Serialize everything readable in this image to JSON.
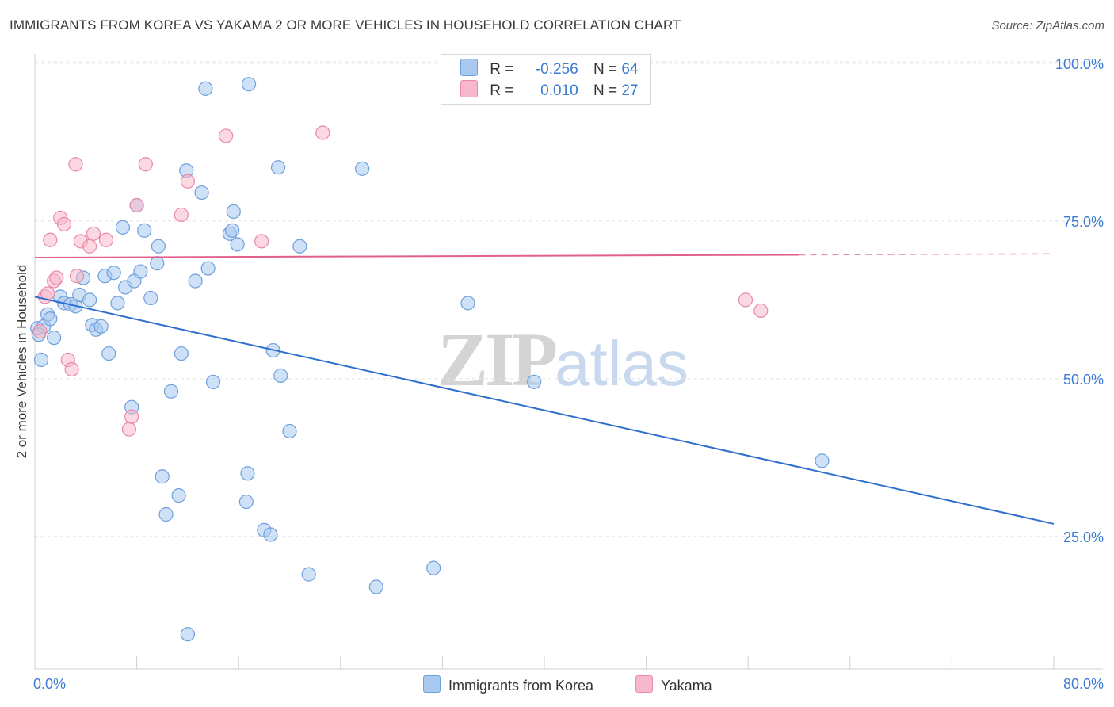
{
  "header": {
    "title": "IMMIGRANTS FROM KOREA VS YAKAMA 2 OR MORE VEHICLES IN HOUSEHOLD CORRELATION CHART",
    "source": "Source: ZipAtlas.com"
  },
  "legend": {
    "series": [
      {
        "r_label": "R =",
        "r_value": "-0.256",
        "n_label": "N =",
        "n_value": "64",
        "color": "#a8c8f0"
      },
      {
        "r_label": "R =",
        "r_value": "0.010",
        "n_label": "N =",
        "n_value": "27",
        "color": "#f7b8cb"
      }
    ]
  },
  "bottom_legend": [
    "Immigrants from Korea",
    "Yakama"
  ],
  "watermark": {
    "zip": "ZIP",
    "atlas": "atlas"
  },
  "chart_data": {
    "type": "scatter",
    "title": "IMMIGRANTS FROM KOREA VS YAKAMA 2 OR MORE VEHICLES IN HOUSEHOLD CORRELATION CHART",
    "xlabel": "",
    "ylabel": "2 or more Vehicles in Household",
    "xlim": [
      0,
      80
    ],
    "ylim": [
      4,
      102
    ],
    "x_tick_labels": [
      "0.0%",
      "80.0%"
    ],
    "y_ticks": [
      25,
      50,
      75,
      100
    ],
    "y_tick_labels": [
      "25.0%",
      "50.0%",
      "75.0%",
      "100.0%"
    ],
    "grid": true,
    "legend_placement": "top-center",
    "colors": {
      "korea_fill": "#a8c8f0",
      "korea_stroke": "#6f9fdc",
      "korea_line": "#2f6fcc",
      "yakama_fill": "#f7b8cb",
      "yakama_stroke": "#e88aa7",
      "yakama_line": "#e0608a"
    },
    "series": [
      {
        "name": "Immigrants from Korea",
        "trend": {
          "x": [
            0,
            80
          ],
          "y": [
            63.0,
            27.0
          ]
        },
        "points": [
          [
            0.2,
            58.0
          ],
          [
            0.5,
            53.0
          ],
          [
            0.7,
            58.3
          ],
          [
            1.0,
            60.2
          ],
          [
            1.2,
            59.5
          ],
          [
            1.5,
            56.5
          ],
          [
            2.0,
            63.0
          ],
          [
            2.3,
            62.0
          ],
          [
            2.8,
            61.8
          ],
          [
            3.2,
            61.5
          ],
          [
            3.5,
            63.3
          ],
          [
            3.8,
            66.0
          ],
          [
            4.3,
            62.5
          ],
          [
            4.5,
            58.5
          ],
          [
            4.8,
            57.8
          ],
          [
            5.2,
            58.3
          ],
          [
            5.5,
            66.3
          ],
          [
            5.8,
            54.0
          ],
          [
            6.2,
            66.8
          ],
          [
            6.5,
            62.0
          ],
          [
            6.9,
            74.0
          ],
          [
            7.1,
            64.5
          ],
          [
            7.6,
            45.5
          ],
          [
            7.8,
            65.5
          ],
          [
            8.0,
            77.5
          ],
          [
            8.3,
            67.0
          ],
          [
            8.6,
            73.5
          ],
          [
            9.1,
            62.8
          ],
          [
            9.6,
            68.3
          ],
          [
            9.7,
            71.0
          ],
          [
            10.0,
            34.5
          ],
          [
            10.3,
            28.5
          ],
          [
            10.7,
            48.0
          ],
          [
            11.3,
            31.5
          ],
          [
            11.5,
            54.0
          ],
          [
            11.9,
            83.0
          ],
          [
            12.0,
            9.5
          ],
          [
            12.6,
            65.5
          ],
          [
            13.1,
            79.5
          ],
          [
            13.4,
            96.0
          ],
          [
            13.6,
            67.5
          ],
          [
            14.0,
            49.5
          ],
          [
            15.3,
            73.0
          ],
          [
            15.5,
            73.5
          ],
          [
            15.6,
            76.5
          ],
          [
            15.9,
            71.3
          ],
          [
            16.6,
            30.5
          ],
          [
            16.7,
            35.0
          ],
          [
            16.8,
            96.7
          ],
          [
            18.0,
            26.0
          ],
          [
            18.5,
            25.3
          ],
          [
            18.7,
            54.5
          ],
          [
            19.1,
            83.5
          ],
          [
            19.3,
            50.5
          ],
          [
            20.0,
            41.7
          ],
          [
            20.8,
            71.0
          ],
          [
            21.5,
            19.0
          ],
          [
            25.7,
            83.3
          ],
          [
            26.8,
            17.0
          ],
          [
            31.3,
            20.0
          ],
          [
            34.0,
            62.0
          ],
          [
            39.2,
            49.5
          ],
          [
            61.8,
            37.0
          ],
          [
            0.3,
            57.0
          ]
        ]
      },
      {
        "name": "Yakama",
        "trend": {
          "x": [
            0,
            80
          ],
          "y": [
            69.2,
            69.8
          ]
        },
        "trend_solid_until": 60,
        "points": [
          [
            0.4,
            57.5
          ],
          [
            0.8,
            63.0
          ],
          [
            1.0,
            63.5
          ],
          [
            1.2,
            72.0
          ],
          [
            1.5,
            65.5
          ],
          [
            1.7,
            66.0
          ],
          [
            2.0,
            75.5
          ],
          [
            2.3,
            74.5
          ],
          [
            2.6,
            53.0
          ],
          [
            2.9,
            51.5
          ],
          [
            3.2,
            84.0
          ],
          [
            3.3,
            66.3
          ],
          [
            3.6,
            71.8
          ],
          [
            4.3,
            71.0
          ],
          [
            4.6,
            73.0
          ],
          [
            5.6,
            72.0
          ],
          [
            7.4,
            42.0
          ],
          [
            7.6,
            44.0
          ],
          [
            8.0,
            77.5
          ],
          [
            8.7,
            84.0
          ],
          [
            11.5,
            76.0
          ],
          [
            12.0,
            81.3
          ],
          [
            15.0,
            88.5
          ],
          [
            17.8,
            71.8
          ],
          [
            22.6,
            89.0
          ],
          [
            55.8,
            62.5
          ],
          [
            57.0,
            60.8
          ]
        ]
      }
    ]
  }
}
